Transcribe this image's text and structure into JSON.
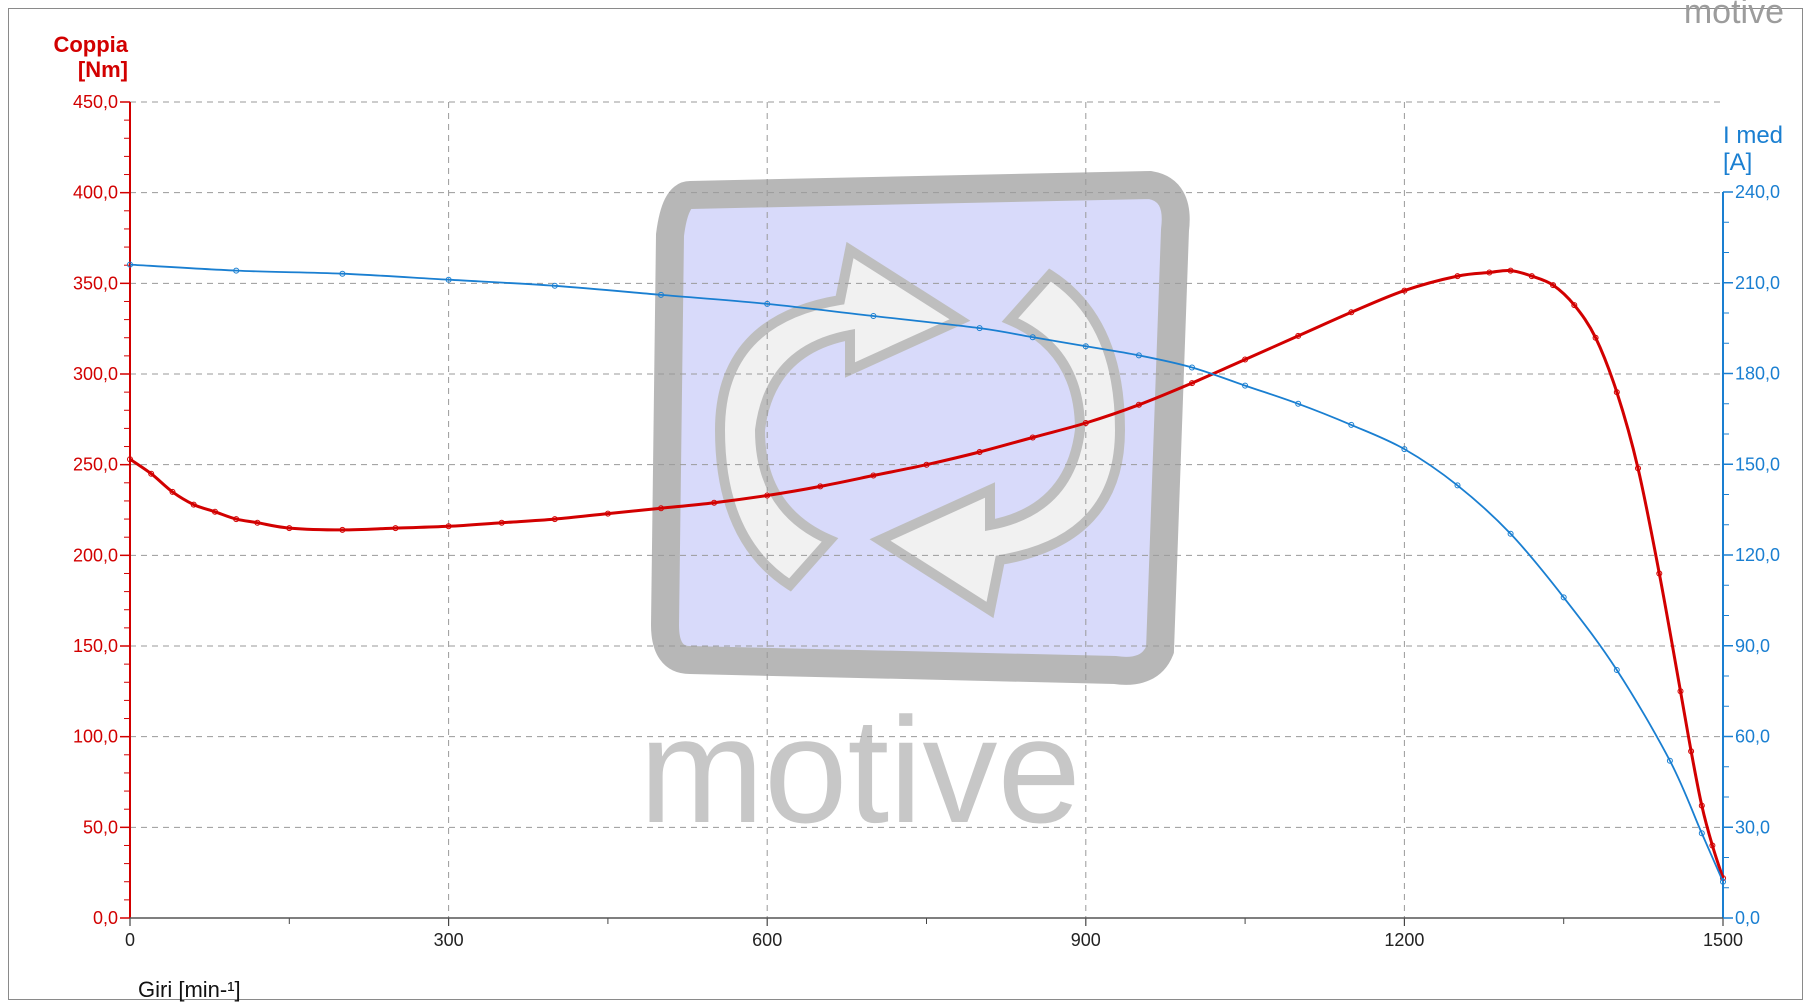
{
  "brand": "motive",
  "chart_data": {
    "type": "line",
    "title": "",
    "xlabel": "Giri [min-¹]",
    "xlim": [
      0,
      1500
    ],
    "xticks": [
      "0",
      "300",
      "600",
      "900",
      "1200",
      "1500"
    ],
    "y_left": {
      "label_line1": "Coppia",
      "label_line2": "[Nm]",
      "lim": [
        0,
        450
      ],
      "ticks": [
        "0,0",
        "50,0",
        "100,0",
        "150,0",
        "200,0",
        "250,0",
        "300,0",
        "350,0",
        "400,0",
        "450,0"
      ],
      "color": "#d20000"
    },
    "y_right": {
      "label_line1": "I med",
      "label_line2": "[A]",
      "lim": [
        0,
        240
      ],
      "ticks": [
        "0,0",
        "30,0",
        "60,0",
        "90,0",
        "120,0",
        "150,0",
        "180,0",
        "210,0",
        "240,0"
      ],
      "color": "#1a7fd1"
    },
    "grid": true,
    "series": [
      {
        "axis": "left",
        "color": "#d20000",
        "x": [
          0,
          20,
          40,
          60,
          80,
          100,
          120,
          150,
          200,
          250,
          300,
          350,
          400,
          450,
          500,
          550,
          600,
          650,
          700,
          750,
          800,
          850,
          900,
          950,
          1000,
          1050,
          1100,
          1150,
          1200,
          1250,
          1280,
          1300,
          1320,
          1340,
          1360,
          1380,
          1400,
          1420,
          1440,
          1460,
          1470,
          1480,
          1490,
          1500
        ],
        "y": [
          253,
          245,
          235,
          228,
          224,
          220,
          218,
          215,
          214,
          215,
          216,
          218,
          220,
          223,
          226,
          229,
          233,
          238,
          244,
          250,
          257,
          265,
          273,
          283,
          295,
          308,
          321,
          334,
          346,
          354,
          356,
          357,
          354,
          349,
          338,
          320,
          290,
          248,
          190,
          125,
          92,
          62,
          40,
          22
        ]
      },
      {
        "axis": "right",
        "color": "#1a7fd1",
        "x": [
          0,
          100,
          200,
          300,
          400,
          500,
          600,
          700,
          800,
          850,
          900,
          950,
          1000,
          1050,
          1100,
          1150,
          1200,
          1250,
          1300,
          1350,
          1400,
          1450,
          1480,
          1500
        ],
        "y": [
          216,
          214,
          213,
          211,
          209,
          206,
          203,
          199,
          195,
          192,
          189,
          186,
          182,
          176,
          170,
          163,
          155,
          143,
          127,
          106,
          82,
          52,
          28,
          12
        ]
      }
    ]
  }
}
